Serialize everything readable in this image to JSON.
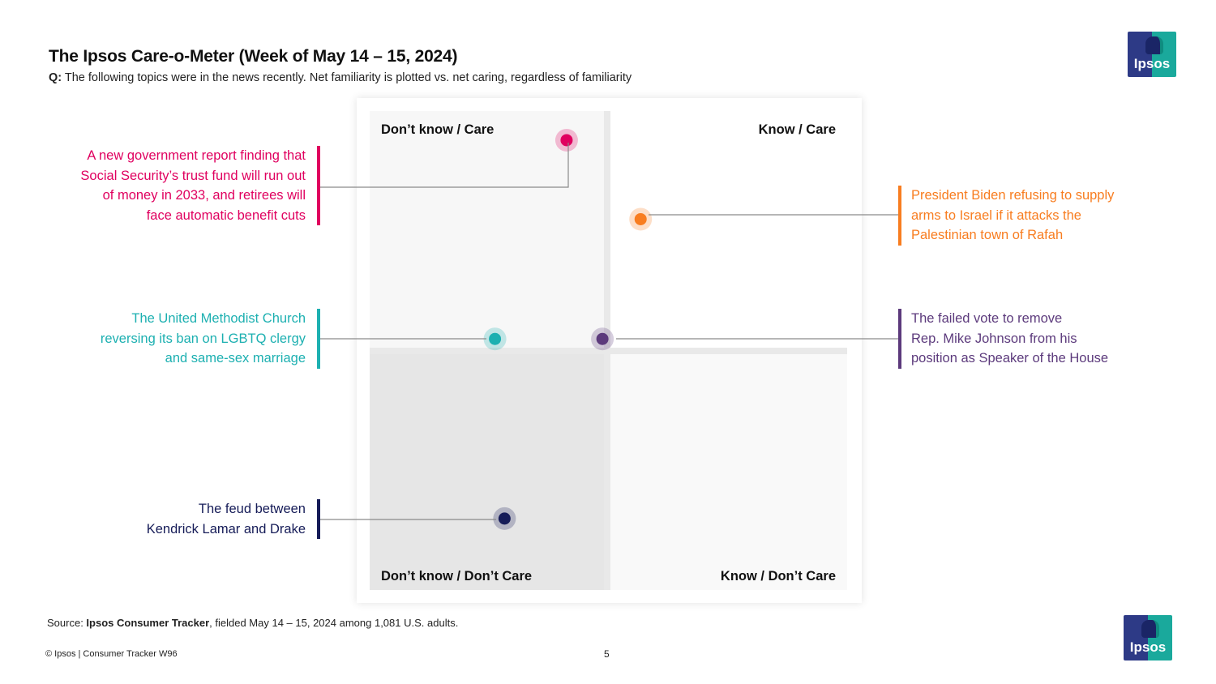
{
  "header": {
    "title": "The Ipsos Care-o-Meter (Week of May 14 – 15, 2024)",
    "question_prefix": "Q:",
    "question_text": "The following topics were in the news recently. Net familiarity is plotted vs. net caring, regardless of familiarity"
  },
  "logo": {
    "text": "Ipsos"
  },
  "chart_data": {
    "type": "scatter",
    "title": "The Ipsos Care-o-Meter (Week of May 14 – 15, 2024)",
    "xlabel": "",
    "ylabel": "",
    "xlim": [
      -1,
      1
    ],
    "ylim": [
      -1,
      1
    ],
    "grid": false,
    "quadrants": [
      {
        "name": "Don’t know / Care",
        "position": "top-left",
        "fill": "#f7f7f7"
      },
      {
        "name": "Know / Care",
        "position": "top-right",
        "fill": "#ffffff"
      },
      {
        "name": "Don’t know / Don’t Care",
        "position": "bottom-left",
        "fill": "#e6e6e6"
      },
      {
        "name": "Know / Don’t Care",
        "position": "bottom-right",
        "fill": "#f9f9f9"
      }
    ],
    "points": [
      {
        "label": "A new government report finding that Social Security’s trust fund will run out of money in 2033, and retirees will face automatic benefit cuts",
        "x": -0.17,
        "y": 0.88,
        "color": "#e0005f"
      },
      {
        "label": "President Biden refusing to supply arms to Israel if it attacks the Palestinian town of Rafah",
        "x": 0.14,
        "y": 0.55,
        "color": "#f87d20"
      },
      {
        "label": "The United Methodist Church reversing its ban on LGBTQ clergy and same-sex marriage",
        "x": -0.47,
        "y": 0.05,
        "color": "#1db0b1"
      },
      {
        "label": "The failed vote to remove Rep. Mike Johnson from his position as Speaker of the House",
        "x": -0.02,
        "y": 0.05,
        "color": "#5c3a7c"
      },
      {
        "label": "The feud between Kendrick Lamar and Drake",
        "x": -0.43,
        "y": -0.7,
        "color": "#161c58"
      }
    ]
  },
  "callouts": {
    "social_security": [
      "A new government report finding that",
      "Social Security’s trust fund will run out",
      "of money in 2033, and retirees will",
      "face automatic benefit cuts"
    ],
    "biden": [
      "President Biden refusing to supply",
      "arms to Israel if it attacks the",
      "Palestinian town of Rafah"
    ],
    "methodist": [
      "The United Methodist Church",
      "reversing its ban on LGBTQ clergy",
      "and same-sex marriage"
    ],
    "johnson": [
      "The failed vote to remove",
      "Rep. Mike Johnson from his",
      "position as Speaker of the House"
    ],
    "feud": [
      "The feud between",
      "Kendrick Lamar and Drake"
    ]
  },
  "footer": {
    "source_prefix": "Source: ",
    "source_bold": "Ipsos Consumer Tracker",
    "source_rest": ", fielded May 14 – 15, 2024 among 1,081 U.S. adults.",
    "copyright": "© Ipsos | Consumer Tracker W96",
    "page_number": "5"
  }
}
